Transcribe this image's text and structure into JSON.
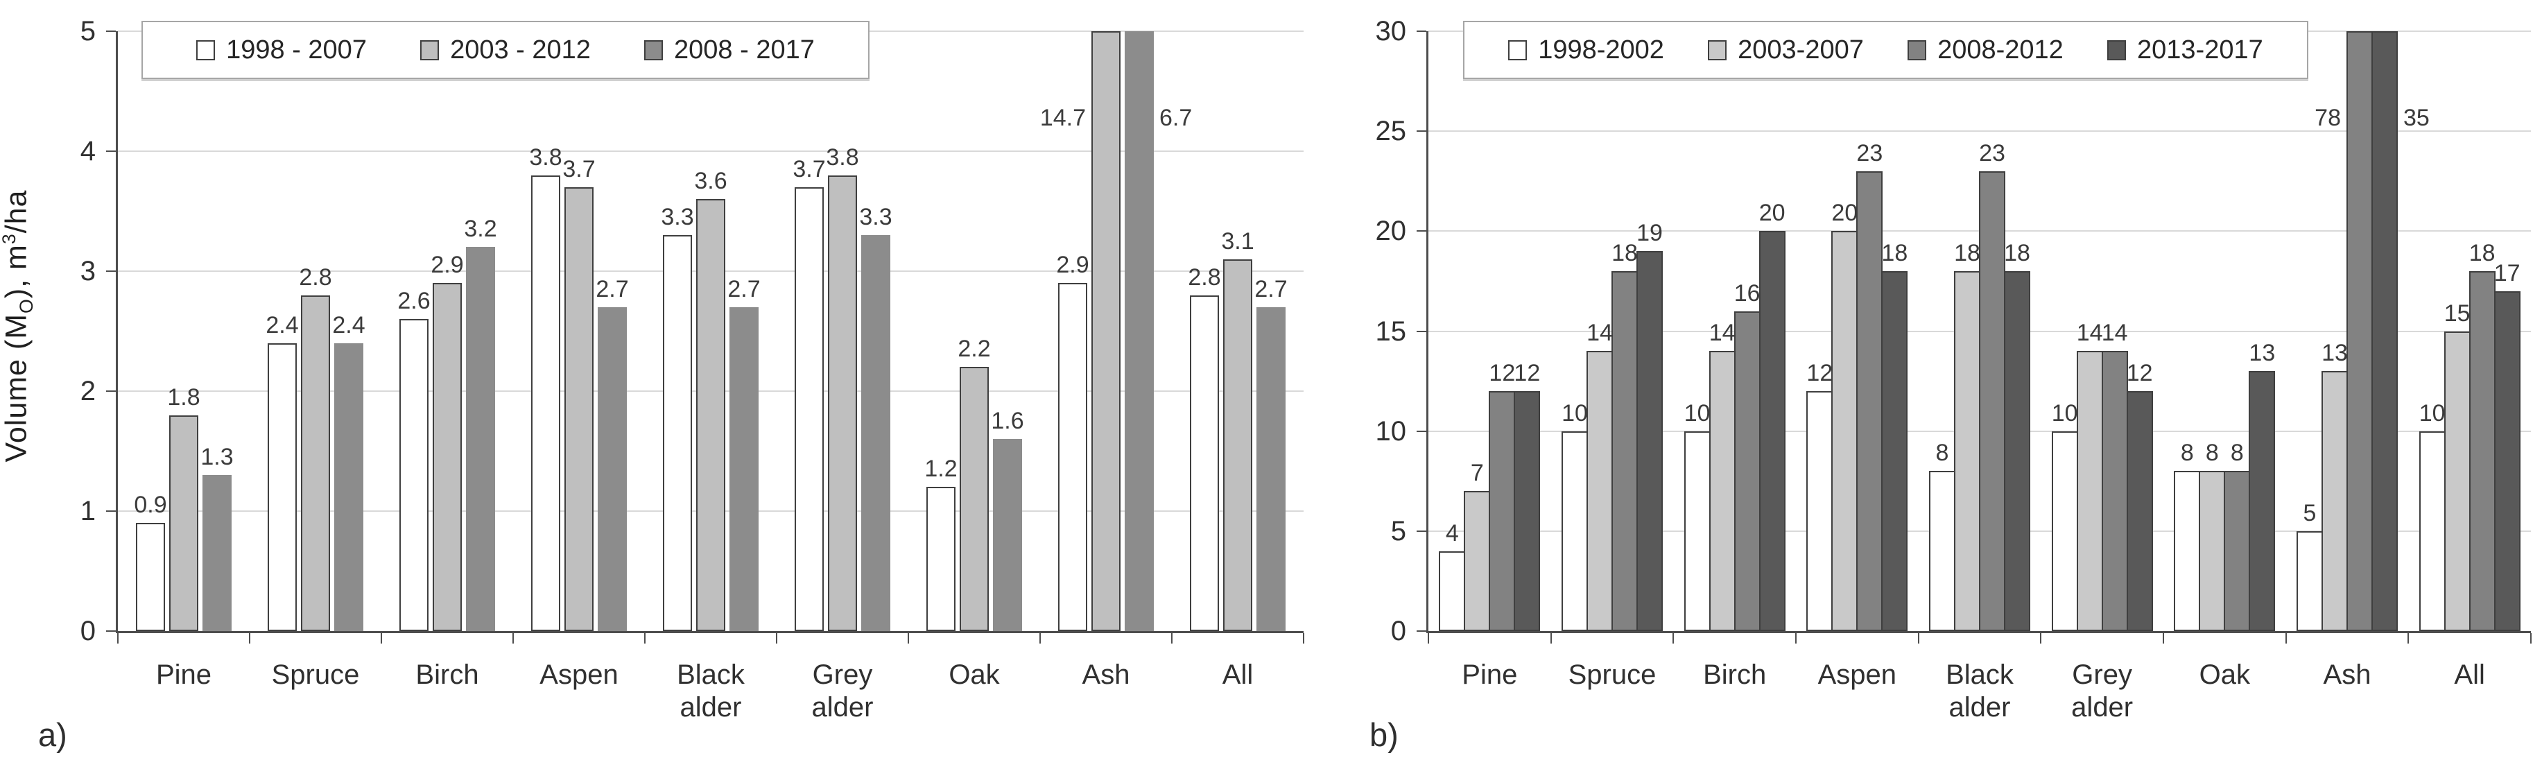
{
  "page": {
    "background": "#ffffff"
  },
  "colors": {
    "axis": "#4d4d4d",
    "grid": "#d9d9d9",
    "text": "#303030",
    "bar_border": "#3f3f3f",
    "legend_border": "#a6a6a6"
  },
  "chart_data": [
    {
      "id": "a",
      "type": "bar",
      "panel_label": "a)",
      "ylabel_parts": {
        "prefix": "Volume (M",
        "sub": "O",
        "mid": "), m",
        "sup": "3",
        "suffix": "/ha"
      },
      "ylim": [
        0,
        5
      ],
      "yticks": [
        "0",
        "1",
        "2",
        "3",
        "4",
        "5"
      ],
      "grid": true,
      "legend_position": "top",
      "categories": [
        [
          "Pine"
        ],
        [
          "Spruce"
        ],
        [
          "Birch"
        ],
        [
          "Aspen"
        ],
        [
          "Black",
          "alder"
        ],
        [
          "Grey",
          "alder"
        ],
        [
          "Oak"
        ],
        [
          "Ash"
        ],
        [
          "All"
        ]
      ],
      "series": [
        {
          "name": "1998 - 2007",
          "fill": "#ffffff",
          "border": true,
          "values": [
            0.9,
            2.4,
            2.6,
            3.8,
            3.3,
            3.7,
            1.2,
            2.9,
            2.8
          ]
        },
        {
          "name": "2003 - 2012",
          "fill": "#bfbfbf",
          "border": true,
          "values": [
            1.8,
            2.8,
            2.9,
            3.7,
            3.6,
            3.8,
            2.2,
            14.7,
            3.1
          ]
        },
        {
          "name": "2008 - 2017",
          "fill": "#8c8c8c",
          "border": false,
          "values": [
            1.3,
            2.4,
            3.2,
            2.7,
            2.7,
            3.3,
            1.6,
            6.7,
            2.7
          ]
        }
      ]
    },
    {
      "id": "b",
      "type": "bar",
      "panel_label": "b)",
      "ylabel_parts": null,
      "ylim": [
        0,
        30
      ],
      "yticks": [
        "0",
        "5",
        "10",
        "15",
        "20",
        "25",
        "30"
      ],
      "grid": true,
      "legend_position": "top",
      "categories": [
        [
          "Pine"
        ],
        [
          "Spruce"
        ],
        [
          "Birch"
        ],
        [
          "Aspen"
        ],
        [
          "Black",
          "alder"
        ],
        [
          "Grey",
          "alder"
        ],
        [
          "Oak"
        ],
        [
          "Ash"
        ],
        [
          "All"
        ]
      ],
      "series": [
        {
          "name": "1998-2002",
          "fill": "#ffffff",
          "border": true,
          "values": [
            4,
            10,
            10,
            12,
            8,
            10,
            8,
            5,
            10
          ]
        },
        {
          "name": "2003-2007",
          "fill": "#c9c9c9",
          "border": true,
          "values": [
            7,
            14,
            14,
            20,
            18,
            14,
            8,
            13,
            15
          ]
        },
        {
          "name": "2008-2012",
          "fill": "#828282",
          "border": true,
          "values": [
            12,
            18,
            16,
            23,
            23,
            14,
            8,
            78,
            18
          ]
        },
        {
          "name": "2013-2017",
          "fill": "#595959",
          "border": true,
          "values": [
            12,
            19,
            20,
            18,
            18,
            12,
            13,
            35,
            17
          ]
        }
      ]
    }
  ]
}
